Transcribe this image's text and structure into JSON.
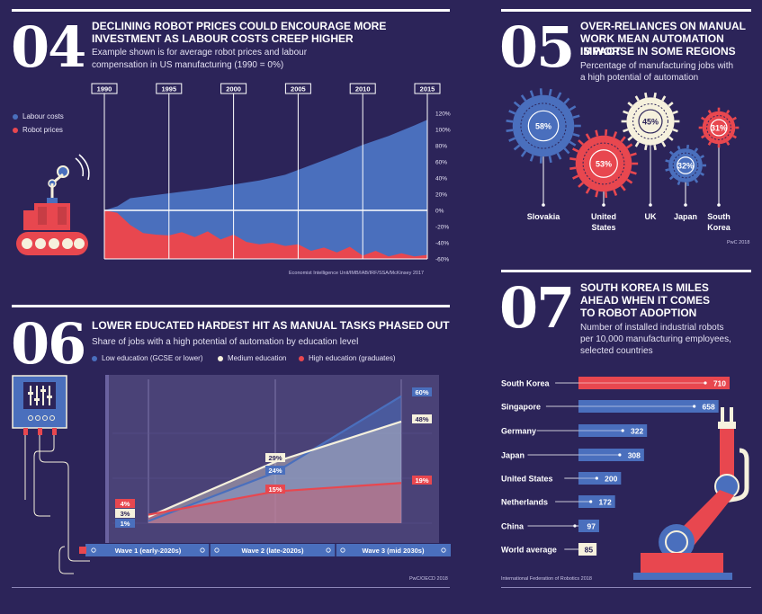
{
  "section04": {
    "number": "04",
    "title_line1": "DECLINING ROBOT PRICES COULD ENCOURAGE MORE",
    "title_line2": "INVESTMENT AS LABOUR COSTS CREEP HIGHER",
    "subtitle_line1": "Example shown is for average robot prices and labour",
    "subtitle_line2": "compensation in US manufacturing (1990 = 0%)",
    "legend": [
      "Labour costs",
      "Robot prices"
    ],
    "source": "Economist Intelligence Unit/IMB/IAB/IRF/SSA/McKinsey 2017"
  },
  "section05": {
    "number": "05",
    "title_line1": "OVER-RELIANCES ON MANUAL",
    "title_line2": "WORK MEAN AUTOMATION IMPACT",
    "title_line3": "IS WORSE IN SOME REGIONS",
    "subtitle_line1": "Percentage of manufacturing jobs with",
    "subtitle_line2": "a high potential of automation",
    "source": "PwC 2018"
  },
  "section06": {
    "number": "06",
    "title": "LOWER EDUCATED HARDEST HIT AS MANUAL TASKS PHASED OUT",
    "subtitle": "Share of jobs with a high potential of automation by education level",
    "legend": [
      "Low education (GCSE or lower)",
      "Medium education",
      "High education (graduates)"
    ],
    "source": "PwC/OECD 2018"
  },
  "section07": {
    "number": "07",
    "title_line1": "SOUTH KOREA IS MILES",
    "title_line2": "AHEAD WHEN IT COMES",
    "title_line3": "TO ROBOT ADOPTION",
    "subtitle_line1": "Number of installed industrial robots",
    "subtitle_line2": "per 10,000 manufacturing employees,",
    "subtitle_line3": "selected countries",
    "source": "International Federation of Robotics 2018"
  },
  "colors": {
    "blue": "#4a6fbd",
    "red": "#e8474f",
    "cream": "#f6f1dd",
    "bg": "#2c2459"
  },
  "chart_data": [
    {
      "type": "area",
      "title": "DECLINING ROBOT PRICES COULD ENCOURAGE MORE INVESTMENT AS LABOUR COSTS CREEP HIGHER",
      "xlabel": "",
      "ylabel": "",
      "x_ticks": [
        "1990",
        "1995",
        "2000",
        "2005",
        "2010",
        "2015"
      ],
      "y_ticks": [
        "120%",
        "100%",
        "80%",
        "60%",
        "40%",
        "20%",
        "0%",
        "-20%",
        "-40%",
        "-60%"
      ],
      "ylim": [
        -60,
        120
      ],
      "xlim": [
        1990,
        2015
      ],
      "series": [
        {
          "name": "Labour costs",
          "color": "#4a6fbd",
          "x": [
            1990,
            1991,
            1991.5,
            1992,
            1994,
            1996,
            1998,
            2000,
            2002,
            2004,
            2006,
            2008,
            2010,
            2012,
            2014,
            2015
          ],
          "values": [
            0,
            5,
            10,
            15,
            19,
            23,
            27,
            32,
            37,
            44,
            56,
            68,
            81,
            92,
            105,
            112
          ]
        },
        {
          "name": "Robot prices",
          "color": "#e8474f",
          "x": [
            1990,
            1991,
            1992,
            1993,
            1994,
            1995,
            1996,
            1997,
            1998,
            1999,
            2000,
            2001,
            2002,
            2003,
            2004,
            2005,
            2006,
            2007,
            2008,
            2009,
            2010,
            2011,
            2012,
            2013,
            2014,
            2015
          ],
          "values": [
            0,
            -3,
            -18,
            -28,
            -30,
            -31,
            -27,
            -33,
            -26,
            -36,
            -30,
            -39,
            -42,
            -40,
            -44,
            -42,
            -50,
            -46,
            -52,
            -45,
            -56,
            -50,
            -57,
            -53,
            -57,
            -55
          ]
        }
      ]
    },
    {
      "type": "bubble",
      "title": "OVER-RELIANCES ON MANUAL WORK MEAN AUTOMATION IMPACT IS WORSE IN SOME REGIONS",
      "categories": [
        "Slovakia",
        "United States",
        "UK",
        "Japan",
        "South Korea"
      ],
      "values": [
        58,
        53,
        45,
        32,
        31
      ],
      "labels": [
        "58%",
        "53%",
        "45%",
        "32%",
        "31%"
      ],
      "category_lines": [
        [
          "Slovakia"
        ],
        [
          "United",
          "States"
        ],
        [
          "UK"
        ],
        [
          "Japan"
        ],
        [
          "South",
          "Korea"
        ]
      ],
      "colors": [
        "#4a6fbd",
        "#e8474f",
        "#f6f1dd",
        "#4a6fbd",
        "#e8474f"
      ],
      "value_text_colors": [
        "#ffffff",
        "#ffffff",
        "#2c2459",
        "#ffffff",
        "#ffffff"
      ]
    },
    {
      "type": "line",
      "title": "LOWER EDUCATED HARDEST HIT AS MANUAL TASKS PHASED OUT",
      "categories": [
        "Wave 1 (early-2020s)",
        "Wave 2 (late-2020s)",
        "Wave 3 (mid 2030s)"
      ],
      "ylim": [
        0,
        62
      ],
      "series": [
        {
          "name": "Low education (GCSE or lower)",
          "color": "#4a6fbd",
          "values": [
            1,
            24,
            60
          ],
          "labels": [
            "1%",
            "24%",
            "60%"
          ]
        },
        {
          "name": "Medium education",
          "color": "#f6f1dd",
          "values": [
            3,
            29,
            48
          ],
          "labels": [
            "3%",
            "29%",
            "48%"
          ]
        },
        {
          "name": "High education (graduates)",
          "color": "#e8474f",
          "values": [
            4,
            15,
            19
          ],
          "labels": [
            "4%",
            "15%",
            "19%"
          ]
        }
      ]
    },
    {
      "type": "bar",
      "title": "SOUTH KOREA IS MILES AHEAD WHEN IT COMES TO ROBOT ADOPTION",
      "categories": [
        "South Korea",
        "Singapore",
        "Germany",
        "Japan",
        "United States",
        "Netherlands",
        "China",
        "World average"
      ],
      "values": [
        710,
        658,
        322,
        308,
        200,
        172,
        97,
        85
      ],
      "labels": [
        "710",
        "658",
        "322",
        "308",
        "200",
        "172",
        "97",
        "85"
      ],
      "xlim": [
        0,
        710
      ],
      "colors": [
        "#e8474f",
        "#4a6fbd",
        "#4a6fbd",
        "#4a6fbd",
        "#4a6fbd",
        "#4a6fbd",
        "#4a6fbd",
        "#f6f1dd"
      ]
    }
  ]
}
